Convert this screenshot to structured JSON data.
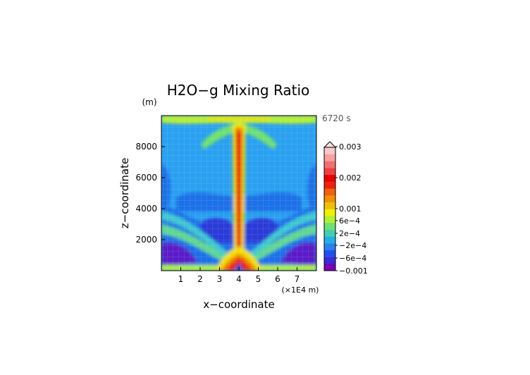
{
  "chart_data": {
    "type": "heatmap",
    "title": "H2O−g Mixing Ratio",
    "time_label": "6720 s",
    "xlabel": "x−coordinate",
    "x_unit": "(×1E4 m)",
    "ylabel": "z−coordinate",
    "y_unit": "(m)",
    "xlim": [
      0,
      8
    ],
    "ylim": [
      0,
      10000
    ],
    "x_ticks": [
      "1",
      "2",
      "3",
      "4",
      "5",
      "6",
      "7"
    ],
    "y_ticks": [
      "2000",
      "4000",
      "6000",
      "8000"
    ],
    "colorbar_labels": [
      "0.003",
      "0.002",
      "0.001",
      "6e−4",
      "2e−4",
      "−2e−4",
      "−6e−4",
      "−0.001"
    ],
    "colorbar_label_values": [
      0.003,
      0.002,
      0.001,
      0.0006,
      0.0002,
      -0.0002,
      -0.0006,
      -0.001
    ],
    "colorbar_colors": [
      "#7a00b4",
      "#3a2ad8",
      "#1e50f0",
      "#2a80f0",
      "#20b0e8",
      "#40d0b0",
      "#70e070",
      "#b0f030",
      "#f0f000",
      "#f0c000",
      "#f09000",
      "#f06010",
      "#f02010",
      "#e80000",
      "#f04040",
      "#f07070",
      "#f8a0a0",
      "#fac8c8"
    ],
    "grid": true,
    "legend": "colorbar-right"
  }
}
